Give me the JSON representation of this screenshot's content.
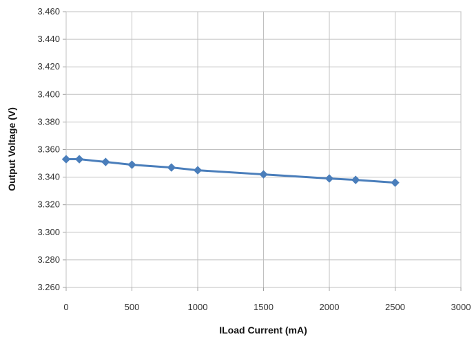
{
  "chart_data": {
    "type": "line",
    "title": "",
    "xlabel": "ILoad Current (mA)",
    "ylabel": "Output  Voltage (V)",
    "xlim": [
      0,
      3000
    ],
    "ylim": [
      3.26,
      3.46
    ],
    "x_ticks": [
      "0",
      "500",
      "1000",
      "1500",
      "2000",
      "2500",
      "3000"
    ],
    "y_ticks": [
      "3.260",
      "3.280",
      "3.300",
      "3.320",
      "3.340",
      "3.360",
      "3.380",
      "3.400",
      "3.420",
      "3.440",
      "3.460"
    ],
    "grid": true,
    "legend": "none",
    "series": [
      {
        "color": "#4a7ebb",
        "marker": "diamond",
        "x": [
          0,
          100,
          300,
          500,
          800,
          1000,
          1500,
          2000,
          2200,
          2500
        ],
        "y": [
          3.353,
          3.353,
          3.351,
          3.349,
          3.347,
          3.345,
          3.342,
          3.339,
          3.338,
          3.336
        ]
      }
    ]
  }
}
